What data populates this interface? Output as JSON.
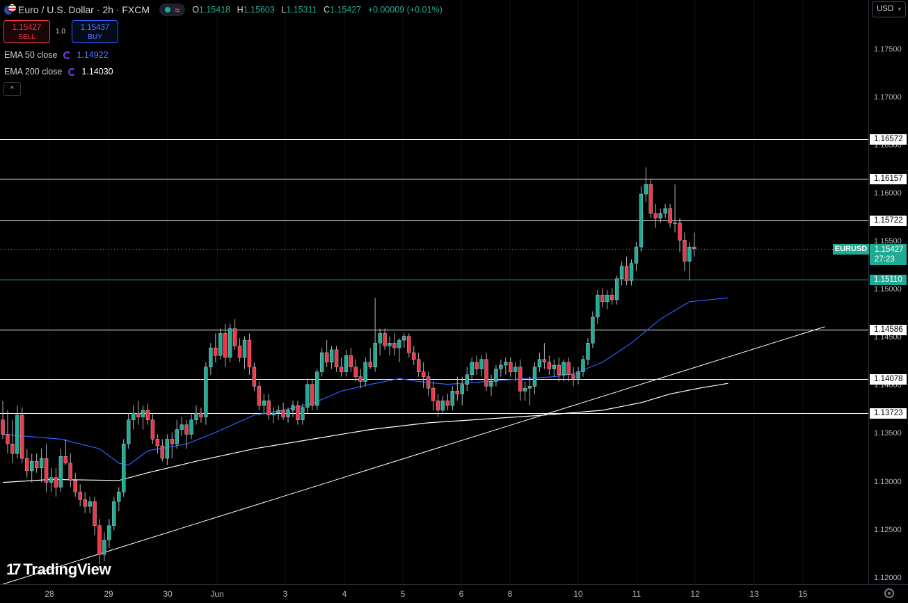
{
  "header": {
    "title": "Euro / U.S. Dollar · 2h · FXCM",
    "ohlc": {
      "open_key": "O",
      "open": "1.15418",
      "high_key": "H",
      "high": "1.15603",
      "low_key": "L",
      "low": "1.15311",
      "close_key": "C",
      "close": "1.15427",
      "change": "+0.00009 (+0.01%)"
    }
  },
  "trade": {
    "sell_price": "1.15427",
    "sell_label": "SELL",
    "buy_price": "1.15437",
    "buy_label": "BUY",
    "spread": "1.0"
  },
  "indicators": [
    {
      "label": "EMA 50 close",
      "value": "1.14922",
      "color": "#2962ff"
    },
    {
      "label": "EMA 200 close",
      "value": "1.14030",
      "color": "#ffffff"
    }
  ],
  "currency_selector": "USD",
  "symbol_tag": "EURUSD",
  "last_price": {
    "value": "1.15427",
    "countdown": "27:23"
  },
  "watermark": "TradingView",
  "chart_data": {
    "type": "candlestick",
    "ylim": [
      1.1194,
      1.1802
    ],
    "y_ticks": [
      "1.12000",
      "1.12500",
      "1.13000",
      "1.13500",
      "1.14000",
      "1.14500",
      "1.15000",
      "1.15500",
      "1.16000",
      "1.16500",
      "1.17000",
      "1.17500"
    ],
    "x_ticks": [
      "28",
      "29",
      "30",
      "Jun",
      "3",
      "4",
      "5",
      "6",
      "8",
      "10",
      "11",
      "12",
      "13",
      "15"
    ],
    "levels": [
      {
        "value": 1.16572,
        "label": "1.16572",
        "color": "#ffffff"
      },
      {
        "value": 1.16157,
        "label": "1.16157",
        "color": "#ffffff"
      },
      {
        "value": 1.15722,
        "label": "1.15722",
        "color": "#ffffff"
      },
      {
        "value": 1.1511,
        "label": "1.15110",
        "color": "#22ab94"
      },
      {
        "value": 1.14586,
        "label": "1.14586",
        "color": "#ffffff"
      },
      {
        "value": 1.14078,
        "label": "1.14078",
        "color": "#ffffff"
      },
      {
        "value": 1.13723,
        "label": "1.13723",
        "color": "#ffffff"
      }
    ],
    "candles": [
      [
        1.1365,
        1.1385,
        1.1345,
        1.135
      ],
      [
        1.135,
        1.1375,
        1.133,
        1.134
      ],
      [
        1.134,
        1.1365,
        1.132,
        1.133
      ],
      [
        1.133,
        1.138,
        1.1325,
        1.137
      ],
      [
        1.137,
        1.1378,
        1.132,
        1.1325
      ],
      [
        1.1325,
        1.1335,
        1.1305,
        1.1312
      ],
      [
        1.1312,
        1.133,
        1.13,
        1.1322
      ],
      [
        1.1322,
        1.133,
        1.131,
        1.1315
      ],
      [
        1.1315,
        1.1335,
        1.13,
        1.1325
      ],
      [
        1.1325,
        1.134,
        1.129,
        1.13
      ],
      [
        1.13,
        1.1315,
        1.129,
        1.1305
      ],
      [
        1.1305,
        1.1315,
        1.1285,
        1.1295
      ],
      [
        1.1295,
        1.1335,
        1.129,
        1.1327
      ],
      [
        1.1327,
        1.1345,
        1.1318,
        1.132
      ],
      [
        1.132,
        1.133,
        1.1295,
        1.1302
      ],
      [
        1.1302,
        1.131,
        1.1285,
        1.129
      ],
      [
        1.129,
        1.1298,
        1.1275,
        1.1282
      ],
      [
        1.1282,
        1.129,
        1.1268,
        1.1275
      ],
      [
        1.1275,
        1.1285,
        1.1268,
        1.128
      ],
      [
        1.128,
        1.1285,
        1.1245,
        1.1255
      ],
      [
        1.1255,
        1.1262,
        1.1215,
        1.1225
      ],
      [
        1.1225,
        1.1248,
        1.1218,
        1.124
      ],
      [
        1.124,
        1.1262,
        1.1232,
        1.1255
      ],
      [
        1.1255,
        1.1285,
        1.125,
        1.128
      ],
      [
        1.128,
        1.1295,
        1.127,
        1.129
      ],
      [
        1.129,
        1.1345,
        1.1285,
        1.134
      ],
      [
        1.134,
        1.1372,
        1.1335,
        1.1365
      ],
      [
        1.1365,
        1.138,
        1.1355,
        1.1372
      ],
      [
        1.1372,
        1.1385,
        1.136,
        1.1368
      ],
      [
        1.1368,
        1.138,
        1.1355,
        1.1375
      ],
      [
        1.1375,
        1.1382,
        1.136,
        1.1365
      ],
      [
        1.1365,
        1.1372,
        1.134,
        1.1345
      ],
      [
        1.1345,
        1.135,
        1.133,
        1.1338
      ],
      [
        1.1338,
        1.1345,
        1.1322,
        1.1325
      ],
      [
        1.1325,
        1.135,
        1.1318,
        1.1345
      ],
      [
        1.1345,
        1.1352,
        1.1325,
        1.134
      ],
      [
        1.134,
        1.1365,
        1.1335,
        1.1355
      ],
      [
        1.1355,
        1.1368,
        1.1348,
        1.136
      ],
      [
        1.136,
        1.1365,
        1.1335,
        1.135
      ],
      [
        1.135,
        1.1372,
        1.1345,
        1.1365
      ],
      [
        1.1365,
        1.138,
        1.136,
        1.1372
      ],
      [
        1.1372,
        1.1378,
        1.1362,
        1.1368
      ],
      [
        1.1368,
        1.1425,
        1.136,
        1.142
      ],
      [
        1.142,
        1.1445,
        1.1412,
        1.144
      ],
      [
        1.144,
        1.1455,
        1.1425,
        1.1432
      ],
      [
        1.1432,
        1.146,
        1.1428,
        1.1455
      ],
      [
        1.1455,
        1.1465,
        1.142,
        1.143
      ],
      [
        1.143,
        1.1465,
        1.1425,
        1.146
      ],
      [
        1.146,
        1.147,
        1.1438,
        1.1442
      ],
      [
        1.1442,
        1.145,
        1.1425,
        1.143
      ],
      [
        1.143,
        1.1452,
        1.1418,
        1.1448
      ],
      [
        1.1448,
        1.1455,
        1.1412,
        1.142
      ],
      [
        1.142,
        1.1425,
        1.1395,
        1.14
      ],
      [
        1.14,
        1.1405,
        1.1375,
        1.138
      ],
      [
        1.138,
        1.1392,
        1.137,
        1.1385
      ],
      [
        1.1385,
        1.1392,
        1.1365,
        1.137
      ],
      [
        1.137,
        1.1378,
        1.1362,
        1.1372
      ],
      [
        1.1372,
        1.138,
        1.1365,
        1.1375
      ],
      [
        1.1375,
        1.1383,
        1.1365,
        1.1368
      ],
      [
        1.1368,
        1.1378,
        1.1362,
        1.1375
      ],
      [
        1.1375,
        1.1385,
        1.1368,
        1.138
      ],
      [
        1.138,
        1.1385,
        1.136,
        1.1365
      ],
      [
        1.1365,
        1.1382,
        1.136,
        1.1378
      ],
      [
        1.1378,
        1.1408,
        1.1372,
        1.1402
      ],
      [
        1.1402,
        1.1408,
        1.1375,
        1.138
      ],
      [
        1.138,
        1.1418,
        1.1375,
        1.1415
      ],
      [
        1.1415,
        1.144,
        1.141,
        1.1435
      ],
      [
        1.1435,
        1.1448,
        1.142,
        1.1425
      ],
      [
        1.1425,
        1.1442,
        1.1418,
        1.1438
      ],
      [
        1.1438,
        1.1442,
        1.1415,
        1.142
      ],
      [
        1.142,
        1.143,
        1.141,
        1.1415
      ],
      [
        1.1415,
        1.1438,
        1.141,
        1.1432
      ],
      [
        1.1432,
        1.144,
        1.1415,
        1.142
      ],
      [
        1.142,
        1.1428,
        1.1405,
        1.141
      ],
      [
        1.141,
        1.1418,
        1.1398,
        1.1405
      ],
      [
        1.1405,
        1.143,
        1.14,
        1.1425
      ],
      [
        1.1425,
        1.144,
        1.1418,
        1.142
      ],
      [
        1.142,
        1.1492,
        1.1415,
        1.1445
      ],
      [
        1.1445,
        1.146,
        1.1432,
        1.1455
      ],
      [
        1.1455,
        1.146,
        1.1438,
        1.1442
      ],
      [
        1.1442,
        1.1452,
        1.1432,
        1.1445
      ],
      [
        1.1445,
        1.1455,
        1.1432,
        1.144
      ],
      [
        1.144,
        1.145,
        1.1425,
        1.1448
      ],
      [
        1.1448,
        1.1455,
        1.144,
        1.1452
      ],
      [
        1.1452,
        1.1455,
        1.143,
        1.1435
      ],
      [
        1.1435,
        1.1442,
        1.1422,
        1.1428
      ],
      [
        1.1428,
        1.1435,
        1.141,
        1.1415
      ],
      [
        1.1415,
        1.1425,
        1.1398,
        1.141
      ],
      [
        1.141,
        1.1415,
        1.139,
        1.1398
      ],
      [
        1.1398,
        1.1405,
        1.1375,
        1.1385
      ],
      [
        1.1385,
        1.1392,
        1.1368,
        1.1375
      ],
      [
        1.1375,
        1.139,
        1.1372,
        1.1385
      ],
      [
        1.1385,
        1.1392,
        1.1375,
        1.138
      ],
      [
        1.138,
        1.14,
        1.1375,
        1.1395
      ],
      [
        1.1395,
        1.141,
        1.1385,
        1.1392
      ],
      [
        1.1392,
        1.141,
        1.138,
        1.1402
      ],
      [
        1.1402,
        1.142,
        1.1395,
        1.1412
      ],
      [
        1.1412,
        1.143,
        1.1405,
        1.1425
      ],
      [
        1.1425,
        1.1432,
        1.1412,
        1.1418
      ],
      [
        1.1418,
        1.1432,
        1.141,
        1.1428
      ],
      [
        1.1428,
        1.1435,
        1.1395,
        1.14
      ],
      [
        1.14,
        1.1412,
        1.139,
        1.1405
      ],
      [
        1.1405,
        1.1422,
        1.14,
        1.1418
      ],
      [
        1.1418,
        1.1428,
        1.141,
        1.1422
      ],
      [
        1.1422,
        1.143,
        1.1412,
        1.1425
      ],
      [
        1.1425,
        1.143,
        1.141,
        1.1415
      ],
      [
        1.1415,
        1.1425,
        1.1405,
        1.142
      ],
      [
        1.142,
        1.1428,
        1.1385,
        1.1395
      ],
      [
        1.1395,
        1.1405,
        1.1385,
        1.1398
      ],
      [
        1.1398,
        1.141,
        1.138,
        1.14
      ],
      [
        1.14,
        1.1425,
        1.1392,
        1.142
      ],
      [
        1.142,
        1.1435,
        1.1415,
        1.1428
      ],
      [
        1.1428,
        1.1445,
        1.1418,
        1.1425
      ],
      [
        1.1425,
        1.1432,
        1.1412,
        1.1418
      ],
      [
        1.1418,
        1.1428,
        1.141,
        1.1422
      ],
      [
        1.1422,
        1.143,
        1.1405,
        1.1412
      ],
      [
        1.1412,
        1.1428,
        1.1405,
        1.1425
      ],
      [
        1.1425,
        1.143,
        1.1405,
        1.1412
      ],
      [
        1.1412,
        1.142,
        1.14,
        1.1408
      ],
      [
        1.1408,
        1.142,
        1.1402,
        1.1415
      ],
      [
        1.1415,
        1.1432,
        1.141,
        1.1428
      ],
      [
        1.1428,
        1.145,
        1.1422,
        1.1445
      ],
      [
        1.1445,
        1.1478,
        1.144,
        1.1472
      ],
      [
        1.1472,
        1.15,
        1.1465,
        1.1495
      ],
      [
        1.1495,
        1.1502,
        1.1482,
        1.1488
      ],
      [
        1.1488,
        1.15,
        1.148,
        1.1495
      ],
      [
        1.1495,
        1.1502,
        1.1485,
        1.149
      ],
      [
        1.149,
        1.1515,
        1.1485,
        1.1512
      ],
      [
        1.1512,
        1.153,
        1.1505,
        1.1525
      ],
      [
        1.1525,
        1.1535,
        1.1505,
        1.151
      ],
      [
        1.151,
        1.1532,
        1.1505,
        1.1528
      ],
      [
        1.1528,
        1.155,
        1.152,
        1.1545
      ],
      [
        1.1545,
        1.1608,
        1.154,
        1.16
      ],
      [
        1.16,
        1.1628,
        1.1592,
        1.161
      ],
      [
        1.161,
        1.1615,
        1.1575,
        1.158
      ],
      [
        1.158,
        1.159,
        1.1565,
        1.1575
      ],
      [
        1.1575,
        1.1585,
        1.157,
        1.158
      ],
      [
        1.158,
        1.159,
        1.1575,
        1.1585
      ],
      [
        1.1585,
        1.159,
        1.1565,
        1.157
      ],
      [
        1.157,
        1.161,
        1.156,
        1.157
      ],
      [
        1.157,
        1.1575,
        1.154,
        1.1552
      ],
      [
        1.1552,
        1.156,
        1.152,
        1.153
      ],
      [
        1.153,
        1.155,
        1.151,
        1.1545
      ],
      [
        1.1545,
        1.156,
        1.1535,
        1.1543
      ]
    ],
    "ema50": [
      [
        0,
        1.135
      ],
      [
        12,
        1.1345
      ],
      [
        20,
        1.1335
      ],
      [
        24,
        1.132
      ],
      [
        26,
        1.1318
      ],
      [
        30,
        1.1333
      ],
      [
        38,
        1.134
      ],
      [
        44,
        1.1352
      ],
      [
        52,
        1.137
      ],
      [
        58,
        1.1375
      ],
      [
        64,
        1.1382
      ],
      [
        70,
        1.1395
      ],
      [
        76,
        1.1402
      ],
      [
        82,
        1.1408
      ],
      [
        86,
        1.1405
      ],
      [
        92,
        1.1402
      ],
      [
        100,
        1.1405
      ],
      [
        108,
        1.1408
      ],
      [
        114,
        1.141
      ],
      [
        118,
        1.1413
      ],
      [
        124,
        1.1425
      ],
      [
        130,
        1.1445
      ],
      [
        136,
        1.147
      ],
      [
        142,
        1.1488
      ],
      [
        150,
        1.1492
      ]
    ],
    "ema200": [
      [
        0,
        1.13
      ],
      [
        10,
        1.1303
      ],
      [
        24,
        1.1302
      ],
      [
        30,
        1.131
      ],
      [
        40,
        1.1322
      ],
      [
        52,
        1.1335
      ],
      [
        64,
        1.1345
      ],
      [
        76,
        1.1355
      ],
      [
        88,
        1.1362
      ],
      [
        100,
        1.1366
      ],
      [
        112,
        1.137
      ],
      [
        124,
        1.1375
      ],
      [
        132,
        1.1383
      ],
      [
        138,
        1.1392
      ],
      [
        144,
        1.1398
      ],
      [
        150,
        1.1403
      ]
    ],
    "trendline": {
      "from": [
        0,
        1.1194
      ],
      "to": [
        170,
        1.1462
      ]
    }
  }
}
